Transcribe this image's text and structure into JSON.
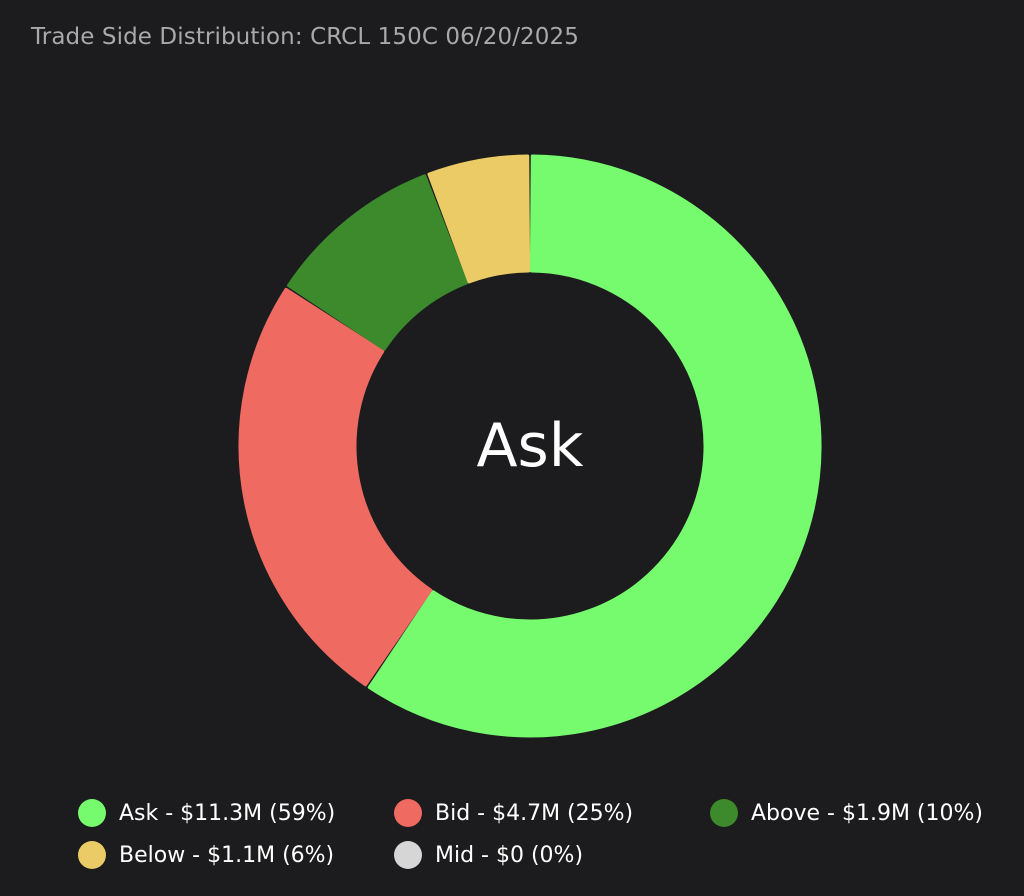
{
  "chart_data": {
    "type": "pie",
    "title": "Trade Side Distribution: CRCL 150C 06/20/2025",
    "center_label": "Ask",
    "legend_placement": "bottom",
    "slices": [
      {
        "name": "Ask",
        "value": 11.3,
        "percent": 59,
        "color": "#76fb6f",
        "legend": "Ask - $11.3M (59%)"
      },
      {
        "name": "Bid",
        "value": 4.7,
        "percent": 25,
        "color": "#ef6b62",
        "legend": "Bid - $4.7M (25%)"
      },
      {
        "name": "Above",
        "value": 1.9,
        "percent": 10,
        "color": "#3c8a2c",
        "legend": "Above - $1.9M (10%)"
      },
      {
        "name": "Below",
        "value": 1.1,
        "percent": 6,
        "color": "#ebcb65",
        "legend": "Below - $1.1M (6%)"
      },
      {
        "name": "Mid",
        "value": 0,
        "percent": 0,
        "color": "#d6d6d6",
        "legend": "Mid - $0 (0%)"
      }
    ]
  }
}
